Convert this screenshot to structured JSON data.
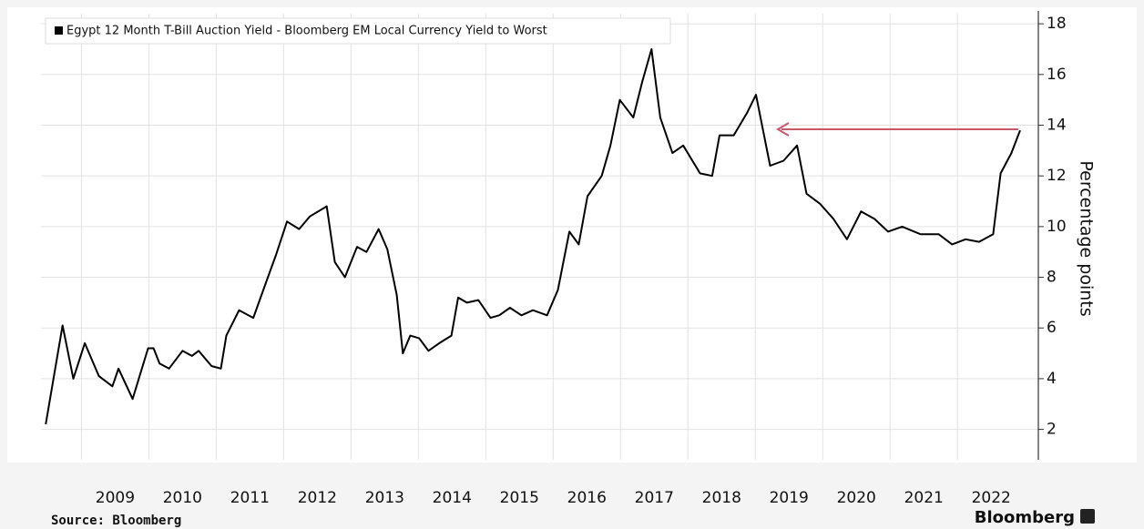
{
  "chart_data": {
    "type": "line",
    "legend_text": "Egypt 12 Month T-Bill Auction Yield - Bloomberg EM Local Currency Yield to Worst",
    "y_axis_label": "Percentage points",
    "source": "Source: Bloomberg",
    "brand": "Bloomberg",
    "x": [
      2008.47,
      2008.72,
      2008.88,
      2009.05,
      2009.26,
      2009.46,
      2009.55,
      2009.76,
      2009.99,
      2010.07,
      2010.16,
      2010.3,
      2010.5,
      2010.64,
      2010.74,
      2010.93,
      2011.07,
      2011.15,
      2011.34,
      2011.55,
      2011.74,
      2011.89,
      2012.05,
      2012.23,
      2012.39,
      2012.64,
      2012.76,
      2012.91,
      2013.09,
      2013.23,
      2013.41,
      2013.54,
      2013.68,
      2013.77,
      2013.88,
      2014.01,
      2014.15,
      2014.31,
      2014.49,
      2014.59,
      2014.72,
      2014.89,
      2015.07,
      2015.2,
      2015.36,
      2015.53,
      2015.7,
      2015.91,
      2016.07,
      2016.24,
      2016.38,
      2016.51,
      2016.72,
      2016.85,
      2016.99,
      2017.19,
      2017.32,
      2017.46,
      2017.59,
      2017.77,
      2017.93,
      2018.18,
      2018.36,
      2018.47,
      2018.68,
      2018.88,
      2019.01,
      2019.22,
      2019.42,
      2019.62,
      2019.76,
      2019.96,
      2020.16,
      2020.36,
      2020.57,
      2020.77,
      2020.97,
      2021.18,
      2021.45,
      2021.72,
      2021.92,
      2022.12,
      2022.32,
      2022.53,
      2022.64,
      2022.8,
      2022.93
    ],
    "series": [
      {
        "name": "Egypt 12 Month T-Bill Auction Yield - Bloomberg EM Local Currency Yield to Worst",
        "color": "#000000",
        "values": [
          2.2,
          6.1,
          4.0,
          5.4,
          4.1,
          3.7,
          4.4,
          3.2,
          5.2,
          5.2,
          4.6,
          4.4,
          5.1,
          4.9,
          5.1,
          4.5,
          4.4,
          5.7,
          6.7,
          6.4,
          7.8,
          8.9,
          10.2,
          9.9,
          10.4,
          10.8,
          8.6,
          8.0,
          9.2,
          9.0,
          9.9,
          9.1,
          7.3,
          5.0,
          5.7,
          5.6,
          5.1,
          5.4,
          5.7,
          7.2,
          7.0,
          7.1,
          6.4,
          6.5,
          6.8,
          6.5,
          6.7,
          6.5,
          7.5,
          9.8,
          9.3,
          11.2,
          12.0,
          13.2,
          15.0,
          14.3,
          15.7,
          17.0,
          14.3,
          12.9,
          13.2,
          12.1,
          12.0,
          13.6,
          13.6,
          14.5,
          15.2,
          12.4,
          12.6,
          13.2,
          11.3,
          10.9,
          10.3,
          9.5,
          10.6,
          10.3,
          9.8,
          10.0,
          9.7,
          9.7,
          9.3,
          9.5,
          9.4,
          9.7,
          12.1,
          12.9,
          13.8
        ]
      }
    ],
    "xlim": [
      2008.4,
      2023.2
    ],
    "xticks": [
      2009,
      2010,
      2011,
      2012,
      2013,
      2014,
      2015,
      2016,
      2017,
      2018,
      2019,
      2020,
      2021,
      2022
    ],
    "ylim": [
      0.8,
      18.4
    ],
    "yticks": [
      2,
      4,
      6,
      8,
      10,
      12,
      14,
      16,
      18
    ],
    "grid": true,
    "legend": "top-left"
  }
}
